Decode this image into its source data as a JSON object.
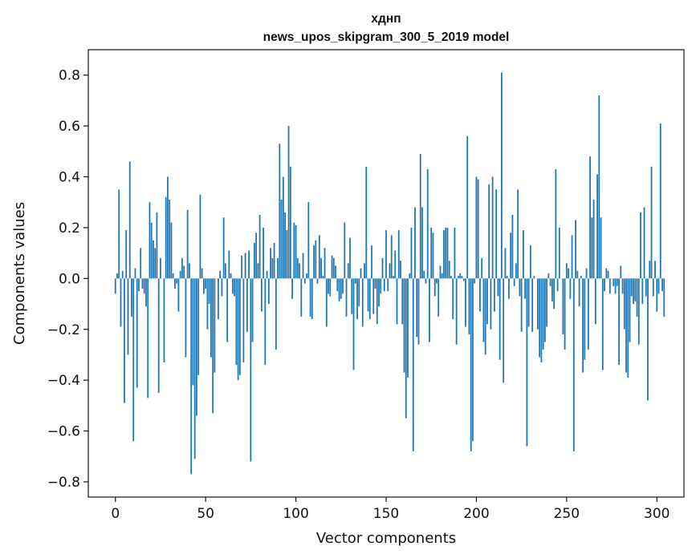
{
  "chart_data": {
    "type": "bar",
    "title": "хднп",
    "subtitle": "news_upos_skipgram_300_5_2019 model",
    "xlabel": "Vector components",
    "ylabel": "Components values",
    "xlim": [
      -15,
      315
    ],
    "ylim": [
      -0.86,
      0.9
    ],
    "xticks": [
      0,
      50,
      100,
      150,
      200,
      250,
      300
    ],
    "yticks": [
      -0.8,
      -0.6,
      -0.4,
      -0.2,
      0.0,
      0.2,
      0.4,
      0.6,
      0.8
    ],
    "ytick_labels": [
      "−0.8",
      "−0.6",
      "−0.4",
      "−0.2",
      "0.0",
      "0.2",
      "0.4",
      "0.6",
      "0.8"
    ],
    "grid": false,
    "bar_color": "#1f77b4",
    "values": [
      -0.06,
      0.02,
      0.35,
      -0.19,
      0.03,
      -0.49,
      0.19,
      -0.3,
      0.46,
      -0.15,
      -0.64,
      0.04,
      -0.43,
      -0.05,
      0.12,
      -0.04,
      -0.06,
      -0.11,
      -0.47,
      0.3,
      0.22,
      0.15,
      0.12,
      0.26,
      -0.45,
      0.08,
      0.0,
      -0.33,
      0.32,
      0.4,
      0.31,
      0.22,
      0.02,
      -0.04,
      -0.02,
      -0.13,
      0.03,
      0.08,
      0.05,
      -0.31,
      0.27,
      0.06,
      -0.77,
      -0.42,
      -0.71,
      -0.54,
      -0.38,
      0.33,
      0.04,
      -0.06,
      -0.04,
      -0.2,
      -0.1,
      -0.31,
      -0.53,
      -0.37,
      0.0,
      -0.16,
      0.03,
      -0.07,
      0.24,
      0.06,
      -0.25,
      0.11,
      0.02,
      -0.06,
      -0.07,
      -0.34,
      -0.4,
      -0.38,
      0.09,
      -0.33,
      0.1,
      -0.21,
      0.11,
      -0.72,
      -0.25,
      0.14,
      0.18,
      0.06,
      0.25,
      -0.13,
      0.2,
      -0.34,
      0.03,
      -0.1,
      0.12,
      0.08,
      0.14,
      -0.28,
      0.08,
      0.53,
      0.31,
      0.4,
      0.26,
      0.19,
      0.6,
      0.44,
      -0.08,
      0.22,
      0.21,
      0.08,
      0.06,
      -0.15,
      0.1,
      -0.02,
      0.02,
      0.3,
      -0.15,
      -0.16,
      0.13,
      0.15,
      -0.02,
      0.17,
      0.08,
      0.01,
      0.12,
      -0.19,
      -0.06,
      -0.07,
      0.09,
      0.08,
      0.05,
      -0.05,
      -0.09,
      -0.08,
      -0.06,
      0.22,
      -0.15,
      0.06,
      0.16,
      -0.14,
      -0.36,
      -0.02,
      -0.16,
      -0.11,
      0.04,
      -0.19,
      0.06,
      0.44,
      -0.13,
      -0.16,
      0.13,
      -0.14,
      -0.04,
      -0.18,
      -0.11,
      -0.06,
      0.08,
      -0.05,
      0.19,
      -0.05,
      0.06,
      0.17,
      0.01,
      0.11,
      -0.18,
      0.19,
      0.07,
      -0.18,
      -0.37,
      -0.55,
      -0.39,
      0.02,
      0.2,
      -0.68,
      0.28,
      -0.23,
      -0.26,
      0.49,
      0.28,
      0.03,
      -0.02,
      0.43,
      -0.25,
      0.2,
      0.18,
      -0.07,
      -0.02,
      -0.15,
      0.05,
      0.02,
      0.19,
      0.2,
      0.2,
      0.07,
      0.01,
      -0.16,
      0.2,
      -0.26,
      0.01,
      0.02,
      0.01,
      -0.01,
      -0.19,
      0.56,
      -0.22,
      -0.68,
      -0.64,
      -0.02,
      0.4,
      0.39,
      -0.13,
      0.08,
      -0.25,
      -0.3,
      -0.18,
      0.37,
      -0.2,
      0.4,
      -0.13,
      0.35,
      -0.07,
      -0.32,
      0.81,
      -0.41,
      0.12,
      0.01,
      -0.08,
      0.18,
      0.25,
      -0.03,
      0.06,
      0.35,
      -0.07,
      -0.21,
      0.19,
      -0.08,
      -0.66,
      -0.19,
      0.13,
      -0.21,
      0.01,
      0.0,
      -0.2,
      -0.31,
      -0.33,
      -0.28,
      -0.25,
      -0.19,
      0.02,
      -0.03,
      -0.09,
      -0.12,
      0.43,
      -0.05,
      0.2,
      0.0,
      -0.22,
      -0.28,
      0.06,
      0.04,
      -0.08,
      0.17,
      -0.68,
      0.23,
      0.03,
      -0.11,
      0.01,
      -0.37,
      -0.32,
      0.04,
      -0.28,
      0.48,
      0.24,
      0.31,
      -0.18,
      0.41,
      0.72,
      0.24,
      -0.36,
      -0.05,
      0.04,
      0.03,
      -0.06,
      0.0,
      -0.03,
      -0.06,
      -0.03,
      -0.34,
      0.05,
      -0.06,
      -0.2,
      -0.37,
      -0.39,
      -0.25,
      -0.07,
      -0.1,
      -0.09,
      -0.15,
      -0.26,
      0.26,
      -0.1,
      0.28,
      -0.07,
      -0.48,
      0.07,
      0.44,
      -0.07,
      0.07,
      -0.13,
      -0.06,
      0.61,
      -0.05,
      -0.15
    ]
  }
}
